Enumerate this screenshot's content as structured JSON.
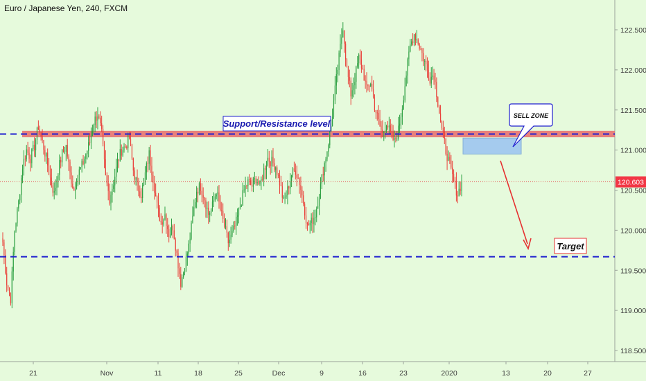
{
  "header": {
    "title": "Euro / Japanese Yen, 240, FXCM"
  },
  "chart_data": {
    "type": "candlestick",
    "symbol": "Euro / Japanese Yen",
    "interval": "240",
    "source": "FXCM",
    "y_axis": {
      "range": [
        118.3,
        122.75
      ],
      "ticks": [
        "118.500",
        "119.000",
        "119.500",
        "120.000",
        "120.500",
        "121.000",
        "121.500",
        "122.000",
        "122.500"
      ],
      "position": "right"
    },
    "x_axis": {
      "ticks": [
        "21",
        "Nov",
        "11",
        "18",
        "25",
        "Dec",
        "9",
        "16",
        "23",
        "2020",
        "13",
        "20",
        "27"
      ]
    },
    "close_price_label": "120.603",
    "close_series": [
      119.85,
      119.35,
      119.15,
      120.0,
      120.35,
      120.8,
      121.0,
      120.9,
      121.05,
      121.3,
      121.1,
      120.9,
      120.65,
      120.45,
      120.75,
      120.95,
      121.05,
      120.7,
      120.5,
      120.7,
      120.8,
      120.95,
      121.1,
      121.35,
      121.45,
      121.2,
      120.65,
      120.4,
      120.6,
      120.85,
      121.0,
      121.05,
      121.15,
      120.75,
      120.55,
      120.45,
      120.7,
      120.95,
      120.65,
      120.3,
      120.1,
      120.2,
      119.95,
      120.05,
      119.7,
      119.35,
      119.55,
      119.8,
      120.15,
      120.5,
      120.55,
      120.4,
      120.2,
      120.3,
      120.5,
      120.25,
      120.05,
      119.85,
      119.95,
      120.1,
      120.3,
      120.5,
      120.6,
      120.55,
      120.65,
      120.55,
      120.75,
      120.9,
      120.85,
      120.8,
      120.6,
      120.35,
      120.5,
      120.7,
      120.75,
      120.6,
      120.35,
      120.05,
      120.1,
      120.2,
      120.45,
      120.75,
      121.0,
      121.3,
      121.75,
      122.15,
      122.55,
      122.0,
      121.7,
      121.9,
      122.15,
      122.0,
      121.75,
      121.85,
      121.55,
      121.35,
      121.2,
      121.35,
      121.2,
      121.1,
      121.25,
      121.55,
      121.95,
      122.3,
      122.45,
      122.35,
      122.2,
      122.05,
      121.9,
      121.95,
      121.6,
      121.25,
      121.0,
      120.8,
      120.6,
      120.45,
      120.6
    ],
    "annotations": {
      "support_resistance_label": "Support/Resistance level",
      "sell_zone_label": "SELL ZONE",
      "target_label": "Target"
    },
    "levels": {
      "support_resistance": 121.2,
      "target": 119.67,
      "last_price": 120.603,
      "sell_zone": [
        120.95,
        121.15
      ]
    },
    "colors": {
      "background": "#e6fadc",
      "up": "#2ea043",
      "down": "#e9413a",
      "level_line": "#1f1fcf",
      "resistance_band": "#e86b6b",
      "sell_zone": "#9ec7f0",
      "arrow": "#e63030",
      "last_price_line": "#e63030",
      "last_price_bg": "#f23645"
    }
  }
}
